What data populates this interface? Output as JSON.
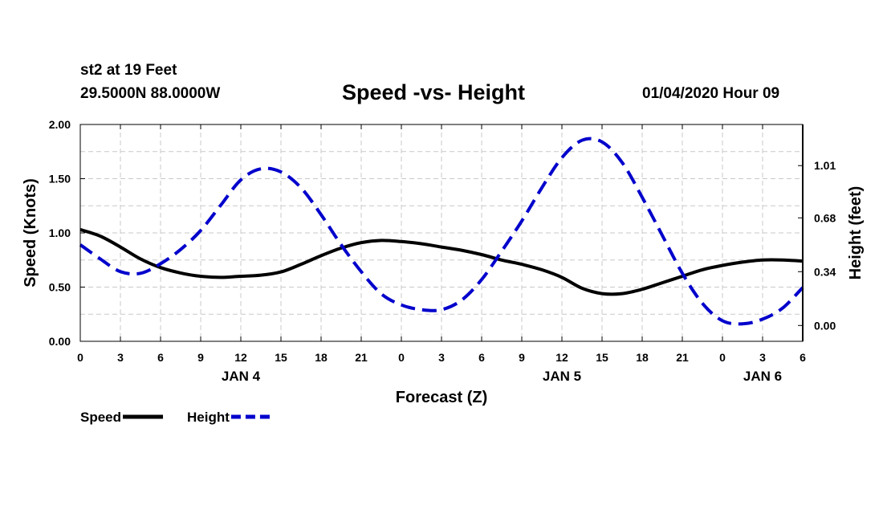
{
  "header": {
    "station": "st2 at 19 Feet",
    "coords": "29.5000N 88.0000W",
    "title": "Speed -vs- Height",
    "datetime": "01/04/2020 Hour 09"
  },
  "chart_data": {
    "type": "line",
    "title": "Speed -vs- Height",
    "xlabel": "Forecast (Z)",
    "ylabel": "Speed (Knots)",
    "y2label": "Height (feet)",
    "xlim": [
      0,
      54
    ],
    "ylim": [
      0,
      2.0
    ],
    "y2lim": [
      -0.1,
      1.27
    ],
    "grid": true,
    "legend_position": "bottom-left",
    "x_tick_labels": [
      "0",
      "3",
      "6",
      "9",
      "12",
      "15",
      "18",
      "21",
      "0",
      "3",
      "6",
      "9",
      "12",
      "15",
      "18",
      "21",
      "0",
      "3",
      "6"
    ],
    "y_ticks": [
      0.0,
      0.5,
      1.0,
      1.5,
      2.0
    ],
    "y_tick_labels": [
      "0.00",
      "0.50",
      "1.00",
      "1.50",
      "2.00"
    ],
    "y2_ticks": [
      0.0,
      0.34,
      0.68,
      1.01
    ],
    "y2_tick_labels": [
      "0.00",
      "0.34",
      "0.68",
      "1.01"
    ],
    "date_labels": [
      {
        "x": 12,
        "text": "JAN 4"
      },
      {
        "x": 36,
        "text": "JAN 5"
      },
      {
        "x": 51,
        "text": "JAN 6"
      }
    ],
    "series": [
      {
        "name": "Speed",
        "axis": "left",
        "color": "#000000",
        "style": "solid",
        "x": [
          0,
          1.5,
          3,
          4.5,
          6,
          7.5,
          9,
          10.5,
          12,
          13.5,
          15,
          16.5,
          18,
          19.5,
          21,
          22.5,
          24,
          25.5,
          27,
          28.5,
          30,
          31.5,
          33,
          34.5,
          36,
          37.5,
          39,
          40.5,
          42,
          43.5,
          45,
          46.5,
          48,
          49.5,
          51,
          52.5,
          54
        ],
        "values": [
          1.03,
          0.97,
          0.87,
          0.76,
          0.68,
          0.63,
          0.6,
          0.59,
          0.6,
          0.61,
          0.64,
          0.71,
          0.79,
          0.86,
          0.91,
          0.93,
          0.92,
          0.9,
          0.87,
          0.84,
          0.8,
          0.75,
          0.71,
          0.66,
          0.59,
          0.49,
          0.44,
          0.44,
          0.48,
          0.54,
          0.6,
          0.66,
          0.7,
          0.73,
          0.75,
          0.75,
          0.74
        ]
      },
      {
        "name": "Height",
        "axis": "right",
        "color": "#0000cc",
        "style": "dashed",
        "x": [
          0,
          1.5,
          3,
          4.5,
          6,
          7.5,
          9,
          10.5,
          12,
          13.5,
          15,
          16.5,
          18,
          19.5,
          21,
          22.5,
          24,
          25.5,
          27,
          28.5,
          30,
          31.5,
          33,
          34.5,
          36,
          37.5,
          39,
          40.5,
          42,
          43.5,
          45,
          46.5,
          48,
          49.5,
          51,
          52.5,
          54
        ],
        "values": [
          0.51,
          0.42,
          0.34,
          0.33,
          0.39,
          0.48,
          0.6,
          0.76,
          0.92,
          0.99,
          0.97,
          0.87,
          0.7,
          0.51,
          0.34,
          0.2,
          0.13,
          0.1,
          0.1,
          0.16,
          0.29,
          0.47,
          0.66,
          0.87,
          1.06,
          1.17,
          1.16,
          1.03,
          0.81,
          0.57,
          0.33,
          0.14,
          0.03,
          0.01,
          0.04,
          0.11,
          0.24
        ]
      }
    ]
  },
  "legend": {
    "items": [
      {
        "label": "Speed",
        "color": "#000000",
        "style": "solid"
      },
      {
        "label": "Height",
        "color": "#0000cc",
        "style": "dashed"
      }
    ]
  }
}
